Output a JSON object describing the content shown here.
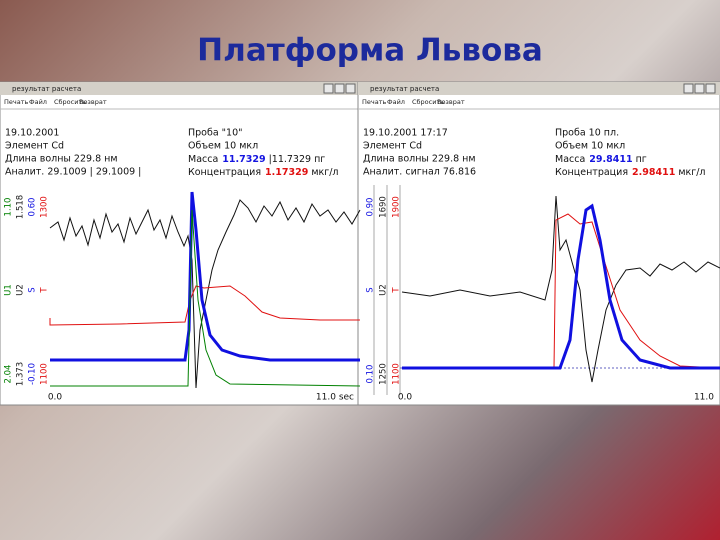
{
  "title": "Платформа Львова",
  "windows": [
    {
      "caption": "результат расчета",
      "menu": [
        "Печать",
        "Файл",
        "Сбросить",
        "Возврат"
      ],
      "info_left": [
        "19.10.2001",
        "Элемент Cd",
        "Длина волны 229.8 нм",
        "Аналит. 29.1009 | 29.1009 |"
      ],
      "info_right": {
        "sample": "Проба \"10\"",
        "volume": "Объем 10 мкл",
        "mass_label": "Масса",
        "mass_value": "11.7329",
        "mass_rest": "|11.7329 пг",
        "conc_label": "Концентрация",
        "conc_value": "1.17329",
        "conc_rest": "мкг/л"
      },
      "axes": [
        {
          "top": "1.10",
          "name": "U1",
          "bottom": "2.04",
          "color": "#008000"
        },
        {
          "top": "1.518",
          "name": "U2",
          "bottom": "1.373",
          "color": "#202020"
        },
        {
          "top": "0.60",
          "name": "S",
          "bottom": "-0.10",
          "color": "#1010e0"
        },
        {
          "top": "1300",
          "name": "T",
          "bottom": "1100",
          "color": "#e01010"
        }
      ],
      "x_start": "0.0",
      "x_end": "11.0 sec"
    },
    {
      "caption": "результат расчета",
      "menu": [
        "Печать",
        "Файл",
        "Сбросить",
        "Возврат"
      ],
      "info_left": [
        "19.10.2001 17:17",
        "Элемент Cd",
        "Длина волны 229.8 нм",
        "Аналит. сигнал 76.816"
      ],
      "info_right": {
        "sample": "Проба 10 пл.",
        "volume": "Объем 10 мкл",
        "mass_label": "Масса",
        "mass_value": "29.8411",
        "mass_rest": "пг",
        "conc_label": "Концентрация",
        "conc_value": "2.98411",
        "conc_rest": "мкг/л"
      },
      "axes": [
        {
          "top": "0.90",
          "name": "S",
          "bottom": "0.10",
          "color": "#1010e0"
        },
        {
          "top": "1690",
          "name": "U2",
          "bottom": "1250",
          "color": "#202020"
        },
        {
          "top": "1900",
          "name": "T",
          "bottom": "1100",
          "color": "#e01010"
        }
      ],
      "x_start": "0.0",
      "x_end": "11.0"
    }
  ]
}
